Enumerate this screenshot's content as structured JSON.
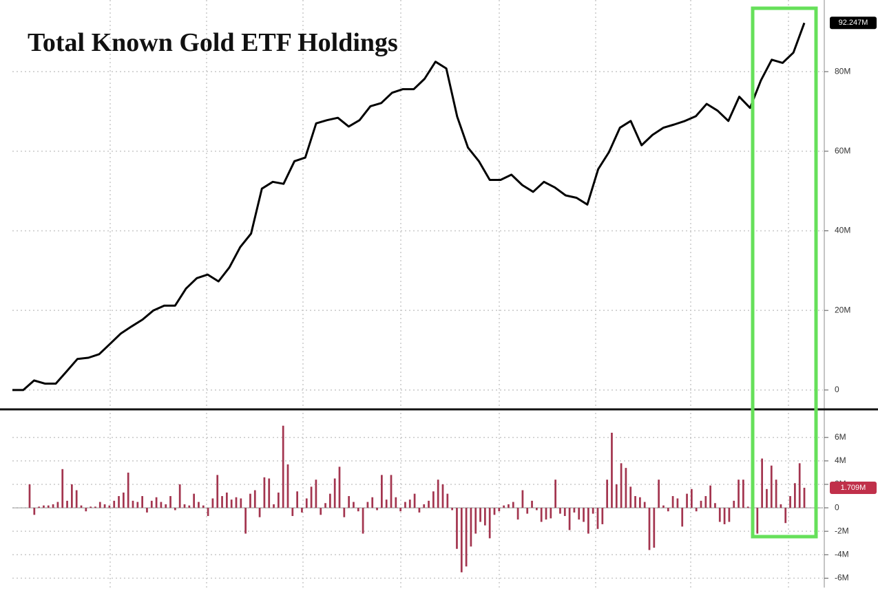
{
  "chart_data": [
    {
      "type": "line",
      "title": "Total Known Gold ETF Holdings",
      "color": "#000000",
      "values": [
        0,
        0,
        2.4,
        1.6,
        1.6,
        4.7,
        7.8,
        8.1,
        9,
        11.6,
        14.2,
        16,
        17.7,
        20,
        21.2,
        21.2,
        25.5,
        28.1,
        29,
        27.3,
        30.8,
        35.9,
        39.3,
        50.6,
        52.3,
        51.8,
        57.5,
        58.4,
        67,
        67.8,
        68.4,
        66.2,
        67.8,
        71.3,
        72.1,
        74.7,
        75.6,
        75.6,
        78.2,
        82.5,
        80.8,
        68.7,
        60.9,
        57.5,
        52.8,
        52.8,
        54.1,
        51.5,
        49.8,
        52.3,
        50.9,
        48.9,
        48.3,
        46.6,
        55.5,
        59.8,
        65.9,
        67.6,
        61.5,
        64.1,
        65.9,
        66.7,
        67.6,
        68.8,
        71.9,
        70.2,
        67.6,
        73.7,
        70.9,
        77.8,
        83,
        82.2,
        84.8,
        92.247
      ],
      "value_labels": [
        null,
        null,
        null,
        null,
        null,
        null,
        null,
        null,
        null,
        null,
        null,
        null,
        null,
        null,
        null,
        null,
        null,
        null,
        null,
        null,
        null,
        null,
        null,
        null,
        null,
        null,
        null,
        null,
        null,
        null,
        null,
        null,
        null,
        null,
        null,
        null,
        null,
        null,
        null,
        null,
        null,
        null,
        null,
        null,
        null,
        null,
        null,
        null,
        null,
        null,
        null,
        null,
        null,
        null,
        null,
        null,
        null,
        null,
        null,
        null,
        null,
        null,
        null,
        null,
        null,
        null,
        null,
        null,
        null,
        null,
        null,
        null,
        null,
        "92.247M"
      ],
      "label_color": "#000000",
      "ylim": [
        -4,
        98
      ],
      "yticks": [
        0,
        {
          "value": 20,
          "label": "20M"
        },
        {
          "value": 40,
          "label": "40M"
        },
        {
          "value": 60,
          "label": "60M"
        },
        {
          "value": 80,
          "label": "80M"
        }
      ],
      "grid": true
    },
    {
      "type": "bar",
      "color": "#a3354f",
      "label_color": "#c0304a",
      "values": [
        2.0,
        -0.6,
        0.1,
        0.2,
        0.2,
        0.3,
        0.5,
        3.3,
        0.6,
        2.0,
        1.5,
        0.2,
        -0.3,
        0.1,
        0.1,
        0.5,
        0.3,
        0.2,
        0.6,
        1.0,
        1.3,
        3.0,
        0.6,
        0.5,
        1.0,
        -0.4,
        0.6,
        0.9,
        0.5,
        0.3,
        1.0,
        -0.2,
        2.0,
        0.3,
        0.2,
        1.2,
        0.5,
        0.2,
        -0.7,
        0.8,
        2.8,
        1.0,
        1.3,
        0.7,
        0.9,
        0.8,
        -2.2,
        1.2,
        1.5,
        -0.8,
        2.6,
        2.5,
        0.3,
        1.3,
        7.0,
        3.7,
        -0.7,
        1.4,
        -0.4,
        0.8,
        1.8,
        2.4,
        -0.6,
        0.4,
        1.2,
        2.5,
        3.5,
        -0.8,
        1.0,
        0.5,
        -0.3,
        -2.2,
        0.5,
        0.9,
        -0.2,
        2.8,
        0.7,
        2.8,
        0.9,
        -0.3,
        0.5,
        0.7,
        1.2,
        -0.4,
        0.3,
        0.6,
        1.4,
        2.4,
        2.0,
        1.2,
        -0.2,
        -3.5,
        -5.5,
        -5.0,
        -3.3,
        -2.2,
        -1.2,
        -1.5,
        -2.6,
        -0.6,
        -0.3,
        0.2,
        0.3,
        0.5,
        -1.0,
        1.5,
        -0.5,
        0.6,
        -0.2,
        -1.2,
        -1.0,
        -0.9,
        2.4,
        -0.5,
        -0.7,
        -1.9,
        -0.4,
        -1.0,
        -1.2,
        -2.2,
        -0.5,
        -1.8,
        -1.4,
        2.4,
        6.4,
        2.0,
        3.8,
        3.4,
        1.8,
        1.0,
        0.9,
        0.5,
        -3.6,
        -3.4,
        2.4,
        0.2,
        -0.3,
        1.0,
        0.8,
        -1.6,
        1.2,
        1.6,
        -0.3,
        0.6,
        1.0,
        1.9,
        0.4,
        -1.2,
        -1.4,
        -1.2,
        0.6,
        2.4,
        2.4,
        0.1,
        -1.2,
        -2.2,
        4.2,
        1.6,
        3.6,
        2.4,
        0.3,
        -1.3,
        1.0,
        2.1,
        3.8,
        1.709
      ],
      "value_labels": [
        null,
        null,
        null,
        null,
        null,
        null,
        null,
        null,
        null,
        null,
        null,
        null,
        null,
        null,
        null,
        null,
        null,
        null,
        null,
        null,
        null,
        null,
        null,
        null,
        null,
        null,
        null,
        null,
        null,
        null,
        null,
        null,
        null,
        null,
        null,
        null,
        null,
        null,
        null,
        null,
        null,
        null,
        null,
        null,
        null,
        null,
        null,
        null,
        null,
        null,
        null,
        null,
        null,
        null,
        null,
        null,
        null,
        null,
        null,
        null,
        null,
        null,
        null,
        null,
        null,
        null,
        null,
        null,
        null,
        null,
        null,
        null,
        null,
        null,
        null,
        null,
        null,
        null,
        null,
        null,
        null,
        null,
        null,
        null,
        null,
        null,
        null,
        null,
        null,
        null,
        null,
        null,
        null,
        null,
        null,
        null,
        null,
        null,
        null,
        null,
        null,
        null,
        null,
        null,
        null,
        null,
        null,
        null,
        null,
        null,
        null,
        null,
        null,
        null,
        null,
        null,
        null,
        null,
        null,
        null,
        null,
        null,
        null,
        null,
        null,
        null,
        null,
        null,
        null,
        null,
        null,
        null,
        null,
        null,
        null,
        null,
        null,
        null,
        null,
        null,
        null,
        null,
        null,
        null,
        null,
        null,
        null,
        null,
        null,
        null,
        null,
        null,
        null,
        null,
        null,
        null,
        null,
        null,
        null,
        null,
        null,
        null,
        null,
        null,
        null,
        "1.709M"
      ],
      "ylim": [
        -6.8,
        8.1
      ],
      "yticks": [
        {
          "value": -6,
          "label": "-6M"
        },
        {
          "value": -4,
          "label": "-4M"
        },
        {
          "value": -2,
          "label": "-2M"
        },
        0,
        {
          "value": 2,
          "label": "2M"
        },
        {
          "value": 4,
          "label": "4M"
        },
        {
          "value": 6,
          "label": "6M"
        }
      ],
      "grid": true
    }
  ]
}
